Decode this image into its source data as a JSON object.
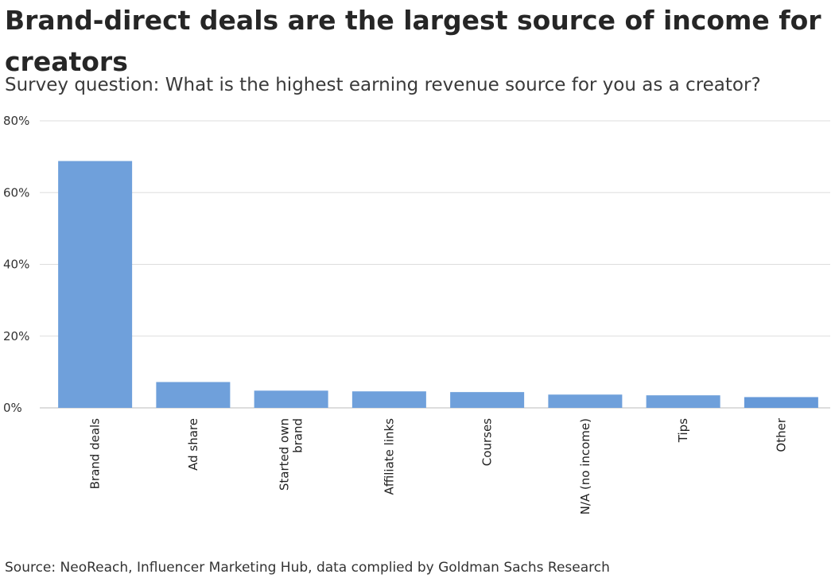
{
  "chart_data": {
    "type": "bar",
    "title_lines": [
      "Brand-direct deals are the largest source of income for",
      "creators"
    ],
    "subtitle": "Survey question: What is the highest earning revenue source for you as a creator?",
    "categories": [
      [
        "Brand deals"
      ],
      [
        "Ad share"
      ],
      [
        "Started own",
        "brand"
      ],
      [
        "Affiliate links"
      ],
      [
        "Courses"
      ],
      [
        "N/A (no income)"
      ],
      [
        "Tips"
      ],
      [
        "Other"
      ]
    ],
    "values": [
      68.8,
      7.2,
      4.8,
      4.6,
      4.4,
      3.7,
      3.5,
      3.0
    ],
    "ylim": [
      0,
      80
    ],
    "yticks": [
      0,
      20,
      40,
      60,
      80
    ],
    "ytick_labels": [
      "0%",
      "20%",
      "40%",
      "60%",
      "80%"
    ],
    "grid": true,
    "colors": {
      "bar": "#6fa0db",
      "bar_last": "#6699d8",
      "grid": "#dddddd",
      "axis": "#bbbbbb"
    }
  },
  "source": "Source: NeoReach, Influencer Marketing Hub, data complied by Goldman Sachs Research"
}
